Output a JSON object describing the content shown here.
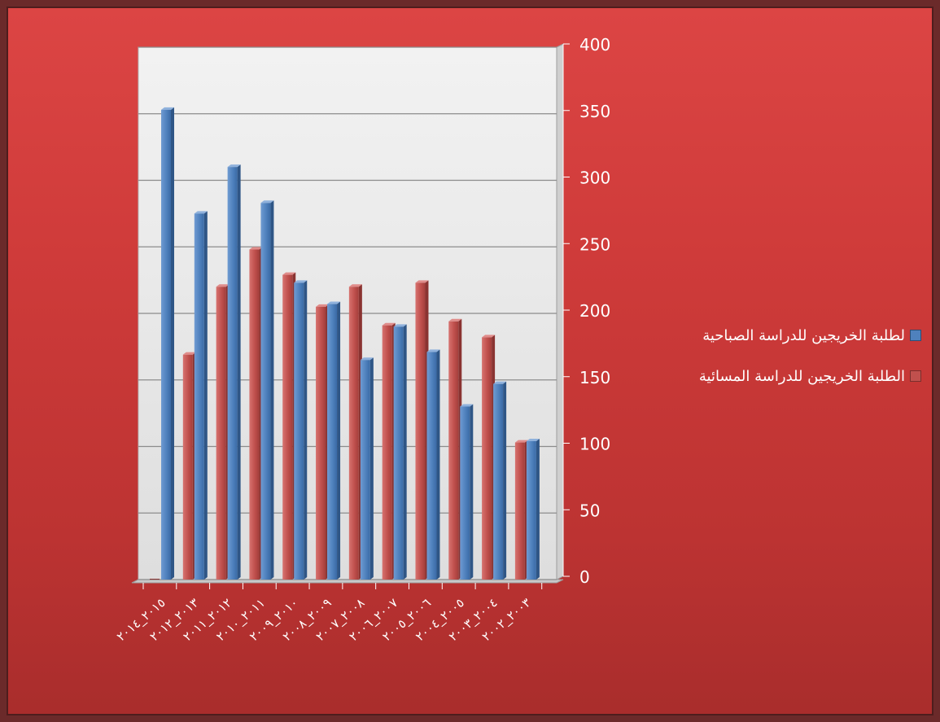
{
  "chart_data": {
    "type": "bar",
    "categories": [
      "٢٠١٥_٢٠١٤",
      "٢٠١٣_٢٠١٢",
      "٢٠١٢_٢٠١١",
      "٢٠١١_٢٠١٠",
      "٢٠١٠_٢٠٠٩",
      "٢٠٠٩_٢٠٠٨",
      "٢٠٠٨_٢٠٠٧",
      "٢٠٠٧_٢٠٠٦",
      "٢٠٠٦_٢٠٠٥",
      "٢٠٠٥_٢٠٠٤",
      "٢٠٠٤_٢٠٠٣",
      "٢٠٠٣_٢٠٠٢"
    ],
    "series": [
      {
        "name": "لطلبة الخريجين للدراسة الصباحية",
        "color": "#4f81bd",
        "values": [
          353,
          275,
          310,
          283,
          223,
          207,
          165,
          190,
          171,
          130,
          147,
          104
        ]
      },
      {
        "name": "الطلبة الخريجين للدراسة المسائية",
        "color": "#c0504d",
        "values": [
          0,
          169,
          220,
          248,
          229,
          205,
          220,
          191,
          223,
          194,
          182,
          103
        ]
      }
    ],
    "yticks": [
      0,
      50,
      100,
      150,
      200,
      250,
      300,
      350,
      400
    ],
    "ylim": [
      0,
      400
    ],
    "grid": true,
    "legend_position": "right"
  }
}
